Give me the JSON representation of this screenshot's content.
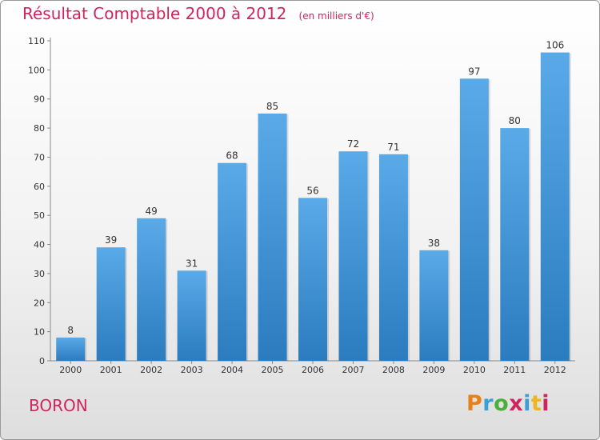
{
  "title": "Résultat Comptable 2000 à 2012",
  "subtitle": "(en milliers d'€)",
  "commune": "BORON",
  "logo": {
    "letters": [
      "P",
      "r",
      "o",
      "x",
      "i",
      "t",
      "i"
    ],
    "colors": [
      "#e8801a",
      "#3aa0d8",
      "#4caf3a",
      "#d0245c",
      "#3aa0d8",
      "#f0b41c",
      "#d0245c"
    ]
  },
  "colors": {
    "bar": "#3d93d6",
    "bar_light": "#5aaae8",
    "bar_dark": "#2a7cbf",
    "title": "#d0245c"
  },
  "chart_data": {
    "type": "bar",
    "categories": [
      "2000",
      "2001",
      "2002",
      "2003",
      "2004",
      "2005",
      "2006",
      "2007",
      "2008",
      "2009",
      "2010",
      "2011",
      "2012"
    ],
    "values": [
      8,
      39,
      49,
      31,
      68,
      85,
      56,
      72,
      71,
      38,
      97,
      80,
      106
    ],
    "yticks": [
      "0",
      "10",
      "20",
      "30",
      "40",
      "50",
      "60",
      "70",
      "80",
      "90",
      "100",
      "110"
    ],
    "ylim": [
      0,
      110
    ],
    "grid": false
  }
}
